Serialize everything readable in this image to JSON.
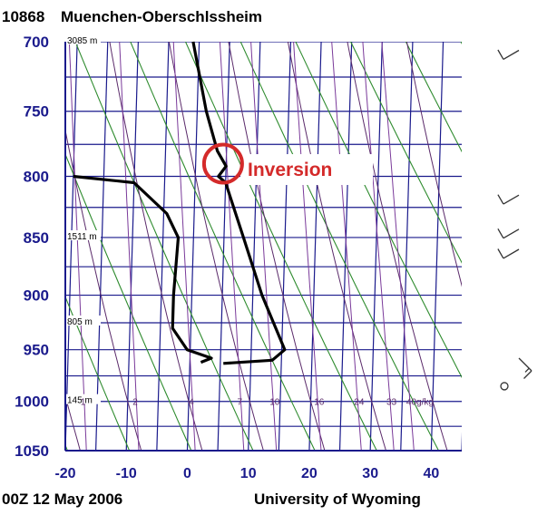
{
  "header": {
    "station_id": "10868",
    "station_name": "Muenchen-Oberschlssheim"
  },
  "footer": {
    "datetime": "00Z 12 May 2006",
    "source": "University of Wyoming"
  },
  "colors": {
    "grid": "#1a1a8c",
    "isotherm": "#1a1a8c",
    "dry_adiabat": "#2e8b2e",
    "moist_adiabat": "#5a2a6a",
    "mixing_ratio": "#7a3a9a",
    "sounding": "#000000",
    "annotation": "#d42a2a"
  },
  "annotation": {
    "label": "Inversion",
    "pressure": 790,
    "temperature": 4.5
  },
  "chart_data": {
    "type": "line",
    "title": "",
    "xlabel": "",
    "ylabel": "",
    "xlim": [
      -20,
      45
    ],
    "ylim": [
      1050,
      700
    ],
    "y_scale": "log",
    "grid": true,
    "x_ticks": [
      "-20",
      "-10",
      "0",
      "10",
      "20",
      "30",
      "40"
    ],
    "y_ticks": [
      "700",
      "750",
      "800",
      "850",
      "900",
      "950",
      "1000",
      "1050"
    ],
    "height_labels": [
      {
        "text": "3085 m",
        "pressure": 700
      },
      {
        "text": "1511 m",
        "pressure": 850
      },
      {
        "text": "805 m",
        "pressure": 925
      },
      {
        "text": "145 m",
        "pressure": 1000
      }
    ],
    "mixing_ratio_labels": [
      "1",
      "2",
      "4",
      "7",
      "10",
      "16",
      "24",
      "33",
      "40g/kg"
    ],
    "series": [
      {
        "name": "",
        "points": [
          {
            "p": 700,
            "t": -1.0
          },
          {
            "p": 750,
            "t": 1.5
          },
          {
            "p": 780,
            "t": 3.5
          },
          {
            "p": 792,
            "t": 5.0
          },
          {
            "p": 800,
            "t": 3.8
          },
          {
            "p": 805,
            "t": 5.0
          },
          {
            "p": 850,
            "t": 8.2
          },
          {
            "p": 900,
            "t": 11.5
          },
          {
            "p": 950,
            "t": 15.5
          },
          {
            "p": 960,
            "t": 13.5
          },
          {
            "p": 963,
            "t": 5.5
          }
        ]
      },
      {
        "name": "",
        "points": [
          {
            "p": 800,
            "t": -20.0
          },
          {
            "p": 805,
            "t": -10.0
          },
          {
            "p": 830,
            "t": -4.5
          },
          {
            "p": 850,
            "t": -2.5
          },
          {
            "p": 900,
            "t": -3.0
          },
          {
            "p": 930,
            "t": -3.0
          },
          {
            "p": 950,
            "t": -0.5
          },
          {
            "p": 958,
            "t": 3.5
          },
          {
            "p": 962,
            "t": 1.8
          }
        ]
      }
    ],
    "wind_barbs": [
      {
        "pressure": 706,
        "direction": 240,
        "speed_kt": 10
      },
      {
        "pressure": 815,
        "direction": 240,
        "speed_kt": 10
      },
      {
        "pressure": 843,
        "direction": 240,
        "speed_kt": 10
      },
      {
        "pressure": 860,
        "direction": 240,
        "speed_kt": 10
      },
      {
        "pressure": 958,
        "direction": 135,
        "speed_kt": 15
      },
      {
        "pressure": 985,
        "direction": 0,
        "speed_kt": 0
      }
    ]
  }
}
